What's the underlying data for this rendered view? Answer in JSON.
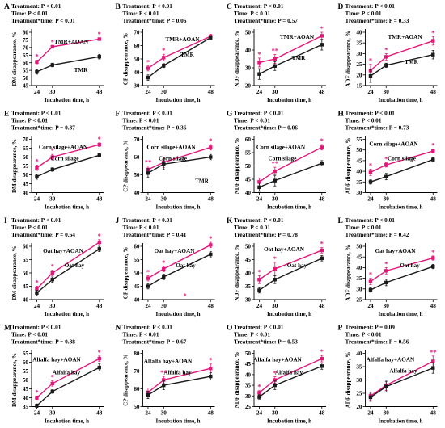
{
  "colors": {
    "treated": "#e5157a",
    "control": "#1a1a1a",
    "axis": "#000000"
  },
  "chart_data": [
    {
      "panel": "A",
      "type": "line",
      "xlabel": "Incubation time, h",
      "ylabel": "DM disappearance, %",
      "x": [
        24,
        30,
        48
      ],
      "xticks": [
        "24",
        "30",
        "48"
      ],
      "ylim": [
        45,
        80
      ],
      "yticks": [
        45,
        50,
        55,
        60,
        65,
        70,
        75,
        80
      ],
      "stats": [
        "Treatment: P < 0.01",
        "Time: P < 0.01",
        "Treatment*time: P < 0.01"
      ],
      "series": [
        {
          "name": "TMR+AOAN",
          "color": "treated",
          "values": [
            60.5,
            70.5,
            75.5
          ],
          "err": [
            1.2,
            0.8,
            0.8
          ]
        },
        {
          "name": "TMR",
          "color": "control",
          "values": [
            54,
            58.5,
            64
          ],
          "err": [
            1.5,
            1.2,
            1.5
          ]
        }
      ],
      "stars": [
        {
          "x": 24,
          "text": "*"
        },
        {
          "x": 30,
          "text": "*"
        },
        {
          "x": 48,
          "text": "*"
        }
      ]
    },
    {
      "panel": "B",
      "type": "line",
      "xlabel": "Incubation time, h",
      "ylabel": "CP disappearance, %",
      "x": [
        24,
        30,
        48
      ],
      "xticks": [
        "24",
        "30",
        "48"
      ],
      "ylim": [
        30,
        70
      ],
      "yticks": [
        30,
        40,
        50,
        60,
        70
      ],
      "stats": [
        "Treatment: P < 0.01",
        "Time: P < 0.01",
        "Treatment*time: P = 0.06"
      ],
      "series": [
        {
          "name": "TMR+AOAN",
          "color": "treated",
          "values": [
            43,
            51,
            67
          ],
          "err": [
            2,
            2.5,
            1.5
          ]
        },
        {
          "name": "TMR",
          "color": "control",
          "values": [
            36,
            45,
            66
          ],
          "err": [
            2,
            1.5,
            1.5
          ]
        }
      ],
      "stars": [
        {
          "x": 24,
          "text": "*"
        },
        {
          "x": 30,
          "text": "*"
        }
      ]
    },
    {
      "panel": "C",
      "type": "line",
      "xlabel": "Incubation time, h",
      "ylabel": "NDF disappearance, %",
      "x": [
        24,
        30,
        48
      ],
      "xticks": [
        "24",
        "30",
        "48"
      ],
      "ylim": [
        20,
        50
      ],
      "yticks": [
        20,
        30,
        40,
        50
      ],
      "stats": [
        "Treatment: P < 0.01",
        "Time: P < 0.01",
        "Treatment*time: P = 0.57"
      ],
      "series": [
        {
          "name": "TMR+AOAN",
          "color": "treated",
          "values": [
            33,
            35,
            48
          ],
          "err": [
            2.5,
            2.5,
            2
          ]
        },
        {
          "name": "TMR",
          "color": "control",
          "values": [
            26.5,
            31,
            43
          ],
          "err": [
            3,
            2.5,
            3
          ]
        }
      ],
      "stars": [
        {
          "x": 24,
          "text": "*"
        },
        {
          "x": 30,
          "text": "**"
        },
        {
          "x": 48,
          "text": "*"
        }
      ]
    },
    {
      "panel": "D",
      "type": "line",
      "xlabel": "Incubation time, h",
      "ylabel": "ADF disappearance, %",
      "x": [
        24,
        30,
        48
      ],
      "xticks": [
        "24",
        "30",
        "48"
      ],
      "ylim": [
        15,
        40
      ],
      "yticks": [
        15,
        20,
        25,
        30,
        35,
        40
      ],
      "stats": [
        "Treatment: P < 0.01",
        "Time: P < 0.01",
        "Treatment*time: P = 0.33"
      ],
      "series": [
        {
          "name": "TMR+AOAN",
          "color": "treated",
          "values": [
            22,
            28.5,
            36
          ],
          "err": [
            3,
            1.5,
            2
          ]
        },
        {
          "name": "TMR",
          "color": "control",
          "values": [
            19.5,
            24.5,
            29.5
          ],
          "err": [
            3,
            1,
            2
          ]
        }
      ],
      "stars": [
        {
          "x": 24,
          "text": "*"
        },
        {
          "x": 30,
          "text": "*"
        },
        {
          "x": 48,
          "text": "*"
        }
      ]
    },
    {
      "panel": "E",
      "type": "line",
      "xlabel": "Incubation time, h",
      "ylabel": "DM disappearance, %",
      "x": [
        24,
        30,
        48
      ],
      "xticks": [
        "24",
        "30",
        "48"
      ],
      "ylim": [
        40,
        70
      ],
      "yticks": [
        40,
        45,
        50,
        55,
        60,
        65,
        70
      ],
      "stats": [
        "Treatment: P < 0.01",
        "Time: P < 0.01",
        "Treatment*time: P = 0.37"
      ],
      "series": [
        {
          "name": "Corn silage+AOAN",
          "color": "treated",
          "values": [
            54,
            60,
            67
          ],
          "err": [
            1.5,
            1.5,
            1
          ]
        },
        {
          "name": "Corn silage",
          "color": "control",
          "values": [
            49,
            53,
            61
          ],
          "err": [
            1.5,
            1,
            1
          ]
        }
      ],
      "stars": [
        {
          "x": 24,
          "text": "*"
        },
        {
          "x": 30,
          "text": "*"
        },
        {
          "x": 48,
          "text": "*"
        }
      ]
    },
    {
      "panel": "F",
      "type": "line",
      "xlabel": "Incubation time, h",
      "ylabel": "CP disappearance, %",
      "x": [
        24,
        30,
        48
      ],
      "xticks": [
        "24",
        "30",
        "48"
      ],
      "ylim": [
        40,
        70
      ],
      "yticks": [
        40,
        50,
        60,
        70
      ],
      "stats": [
        "Treatment: P < 0.01",
        "Time: P < 0.01",
        "Treatment*time: P = 0.36"
      ],
      "series": [
        {
          "name": "Corn silage+AOAN",
          "color": "treated",
          "values": [
            53,
            57,
            65.5
          ],
          "err": [
            2,
            3,
            1.5
          ]
        },
        {
          "name": "Corn silage",
          "color": "control",
          "values": [
            51,
            56,
            60
          ],
          "err": [
            2.5,
            3,
            1.5
          ]
        }
      ],
      "stars": [
        {
          "x": 24,
          "text": "**"
        },
        {
          "x": 48,
          "text": "*"
        }
      ],
      "extra_labels": [
        "TMR"
      ]
    },
    {
      "panel": "G",
      "type": "line",
      "xlabel": "Incubation time, h",
      "ylabel": "NDF disappearance, %",
      "x": [
        24,
        30,
        48
      ],
      "xticks": [
        "24",
        "30",
        "48"
      ],
      "ylim": [
        40,
        60
      ],
      "yticks": [
        40,
        45,
        50,
        55,
        60
      ],
      "stats": [
        "Treatment: P < 0.01",
        "Time: P < 0.01",
        "Treatment*time: P = 0.06"
      ],
      "series": [
        {
          "name": "Corn silage+AOAN",
          "color": "treated",
          "values": [
            44,
            48,
            57
          ],
          "err": [
            1.5,
            1.5,
            1
          ]
        },
        {
          "name": "Corn silage",
          "color": "control",
          "values": [
            42,
            44.5,
            51
          ],
          "err": [
            1.5,
            2,
            1
          ]
        }
      ],
      "stars": [
        {
          "x": 30,
          "text": "**"
        },
        {
          "x": 48,
          "text": "*"
        }
      ]
    },
    {
      "panel": "H",
      "type": "line",
      "xlabel": "Incubation time, h",
      "ylabel": "ADF disappearance, %",
      "x": [
        24,
        30,
        48
      ],
      "xticks": [
        "24",
        "30",
        "48"
      ],
      "ylim": [
        30,
        55
      ],
      "yticks": [
        30,
        35,
        40,
        45,
        50,
        55
      ],
      "stats": [
        "Treatment: P < 0.01",
        "Time: P < 0.01",
        "Treatment*time: P = 0.73"
      ],
      "series": [
        {
          "name": "Corn silage+AOAN",
          "color": "treated",
          "values": [
            39.5,
            43,
            49.5
          ],
          "err": [
            1.5,
            1,
            1
          ]
        },
        {
          "name": "Corn silage",
          "color": "control",
          "values": [
            35,
            37.5,
            45.5
          ],
          "err": [
            1,
            1.5,
            1
          ]
        }
      ],
      "stars": [
        {
          "x": 24,
          "text": "*"
        },
        {
          "x": 30,
          "text": "*"
        },
        {
          "x": 48,
          "text": "*"
        }
      ]
    },
    {
      "panel": "I",
      "type": "line",
      "xlabel": "Incubation time, h",
      "ylabel": "DM disappearance, %",
      "x": [
        24,
        30,
        48
      ],
      "xticks": [
        "24",
        "30",
        "48"
      ],
      "ylim": [
        40,
        60
      ],
      "yticks": [
        40,
        45,
        50,
        55,
        60
      ],
      "stats": [
        "Treatment: P < 0.01",
        "Time: P < 0.01",
        "Treatment*time: P = 0.64"
      ],
      "series": [
        {
          "name": "Oat hay+AOAN",
          "color": "treated",
          "values": [
            44,
            50,
            61.5
          ],
          "err": [
            1,
            1,
            1
          ]
        },
        {
          "name": "Oat hay",
          "color": "control",
          "values": [
            42.5,
            47.5,
            59
          ],
          "err": [
            1,
            1,
            1
          ]
        }
      ],
      "stars": [
        {
          "x": 24,
          "text": "*"
        },
        {
          "x": 30,
          "text": "*"
        },
        {
          "x": 48,
          "text": "*"
        }
      ]
    },
    {
      "panel": "J",
      "type": "line",
      "xlabel": "Incubation time, h",
      "ylabel": "CP disappearance, %",
      "x": [
        24,
        30,
        48
      ],
      "xticks": [
        "24",
        "30",
        "48"
      ],
      "ylim": [
        40,
        60
      ],
      "yticks": [
        40,
        45,
        50,
        55,
        60
      ],
      "stats": [
        "Treatment: P < 0.01",
        "Time: P < 0.01",
        "Treatment*time: P = 0.41"
      ],
      "series": [
        {
          "name": "Oat hay+AOAN",
          "color": "treated",
          "values": [
            48,
            51.5,
            60.5
          ],
          "err": [
            1,
            1,
            1
          ]
        },
        {
          "name": "Oat hay",
          "color": "control",
          "values": [
            45,
            48.5,
            57
          ],
          "err": [
            1,
            1,
            1
          ]
        }
      ],
      "stars": [
        {
          "x": 24,
          "text": "*"
        },
        {
          "x": 30,
          "text": "*"
        },
        {
          "x": 48,
          "text": "*"
        }
      ],
      "extra_stars": [
        "*"
      ]
    },
    {
      "panel": "K",
      "type": "line",
      "xlabel": "Incubation time, h",
      "ylabel": "NDF disappearance, %",
      "x": [
        24,
        30,
        48
      ],
      "xticks": [
        "24",
        "30",
        "48"
      ],
      "ylim": [
        30,
        50
      ],
      "yticks": [
        30,
        35,
        40,
        45,
        50
      ],
      "stats": [
        "Treatment: P < 0.01",
        "Time: P < 0.01",
        "Treatment*time: P = 0.78"
      ],
      "series": [
        {
          "name": "Oat hay+AOAN",
          "color": "treated",
          "values": [
            37.5,
            41.5,
            48.5
          ],
          "err": [
            1.5,
            2.5,
            1
          ]
        },
        {
          "name": "Oat hay",
          "color": "control",
          "values": [
            33.5,
            37.5,
            45.5
          ],
          "err": [
            1,
            1.5,
            1
          ]
        }
      ],
      "stars": [
        {
          "x": 24,
          "text": "*"
        },
        {
          "x": 30,
          "text": "*"
        },
        {
          "x": 48,
          "text": "*"
        }
      ]
    },
    {
      "panel": "L",
      "type": "line",
      "xlabel": "Incubation time, h",
      "ylabel": "ADF disappearance, %",
      "x": [
        24,
        30,
        48
      ],
      "xticks": [
        "24",
        "30",
        "48"
      ],
      "ylim": [
        25,
        50
      ],
      "yticks": [
        25,
        30,
        35,
        40,
        45,
        50
      ],
      "stats": [
        "Treatment: P < 0.01",
        "Time: P < 0.01",
        "Treatment*time: P = 0.42"
      ],
      "series": [
        {
          "name": "Oat hay+AOAN",
          "color": "treated",
          "values": [
            33.5,
            38.5,
            44.5
          ],
          "err": [
            1.5,
            1.5,
            1
          ]
        },
        {
          "name": "Oat hay",
          "color": "control",
          "values": [
            29.5,
            33,
            40.5
          ],
          "err": [
            1,
            1.5,
            1
          ]
        }
      ],
      "stars": [
        {
          "x": 24,
          "text": "*"
        },
        {
          "x": 30,
          "text": "*"
        },
        {
          "x": 48,
          "text": "*"
        }
      ]
    },
    {
      "panel": "M",
      "type": "line",
      "xlabel": "Incubation time, h",
      "ylabel": "DM disappearance, %",
      "x": [
        24,
        30,
        48
      ],
      "xticks": [
        "24",
        "30",
        "48"
      ],
      "ylim": [
        35,
        65
      ],
      "yticks": [
        35,
        40,
        45,
        50,
        55,
        60,
        65
      ],
      "stats": [
        "Treatment: P < 0.01",
        "Time: P < 0.01",
        "Treatment*time: P = 0.88"
      ],
      "series": [
        {
          "name": "Alfalfa hay+AOAN",
          "color": "treated",
          "values": [
            40,
            48,
            62
          ],
          "err": [
            1,
            1.5,
            1.5
          ]
        },
        {
          "name": "Alfalfa hay",
          "color": "control",
          "values": [
            35.5,
            43.5,
            57
          ],
          "err": [
            1,
            1,
            2
          ]
        }
      ],
      "stars": [
        {
          "x": 24,
          "text": "*"
        },
        {
          "x": 30,
          "text": "*"
        },
        {
          "x": 48,
          "text": "*"
        }
      ]
    },
    {
      "panel": "N",
      "type": "line",
      "xlabel": "Incubation time, h",
      "ylabel": "CP disappearance, %",
      "x": [
        24,
        30,
        48
      ],
      "xticks": [
        "24",
        "30",
        "48"
      ],
      "ylim": [
        50,
        80
      ],
      "yticks": [
        50,
        60,
        70,
        80
      ],
      "stats": [
        "Treatment: P < 0.01",
        "Time: P < 0.01",
        "Treatment*time: P = 0.67"
      ],
      "series": [
        {
          "name": "Alfalfa hay+AOAN",
          "color": "treated",
          "values": [
            58,
            65,
            71.5
          ],
          "err": [
            2.5,
            2,
            2.5
          ]
        },
        {
          "name": "Alfalfa hay",
          "color": "control",
          "values": [
            56.5,
            62,
            67
          ],
          "err": [
            2,
            2.5,
            2
          ]
        }
      ],
      "stars": [
        {
          "x": 30,
          "text": "**"
        },
        {
          "x": 48,
          "text": "*"
        }
      ]
    },
    {
      "panel": "O",
      "type": "line",
      "xlabel": "Incubation time, h",
      "ylabel": "NDF disappearance, %",
      "x": [
        24,
        30,
        48
      ],
      "xticks": [
        "24",
        "30",
        "48"
      ],
      "ylim": [
        25,
        50
      ],
      "yticks": [
        25,
        30,
        35,
        40,
        45,
        50
      ],
      "stats": [
        "Treatment: P < 0.01",
        "Time: P < 0.01",
        "Treatment*time: P = 0.53"
      ],
      "series": [
        {
          "name": "Alfalfa hay+AOAN",
          "color": "treated",
          "values": [
            31.5,
            37.5,
            47.5
          ],
          "err": [
            1,
            1.5,
            1.5
          ]
        },
        {
          "name": "Alfalfa hay",
          "color": "control",
          "values": [
            29.5,
            35,
            44
          ],
          "err": [
            1,
            2,
            1.5
          ]
        }
      ],
      "stars": [
        {
          "x": 24,
          "text": "*"
        },
        {
          "x": 30,
          "text": "*"
        },
        {
          "x": 48,
          "text": "*"
        }
      ]
    },
    {
      "panel": "P",
      "type": "line",
      "xlabel": "Incubation time, h",
      "ylabel": "ADF disappearance, %",
      "x": [
        24,
        30,
        48
      ],
      "xticks": [
        "24",
        "30",
        "48"
      ],
      "ylim": [
        20,
        40
      ],
      "yticks": [
        20,
        25,
        30,
        35,
        40
      ],
      "stats": [
        "Treatment: P = 0.09",
        "Time: P < 0.01",
        "Treatment*time: P = 0.56"
      ],
      "series": [
        {
          "name": "Alfalfa hay+AOAN",
          "color": "treated",
          "values": [
            24,
            28,
            37
          ],
          "err": [
            1.5,
            2,
            2
          ]
        },
        {
          "name": "Alfalfa hay",
          "color": "control",
          "values": [
            23.5,
            27.5,
            34.5
          ],
          "err": [
            1.5,
            2,
            2
          ]
        }
      ],
      "stars": [
        {
          "x": 48,
          "text": "**"
        }
      ]
    }
  ]
}
